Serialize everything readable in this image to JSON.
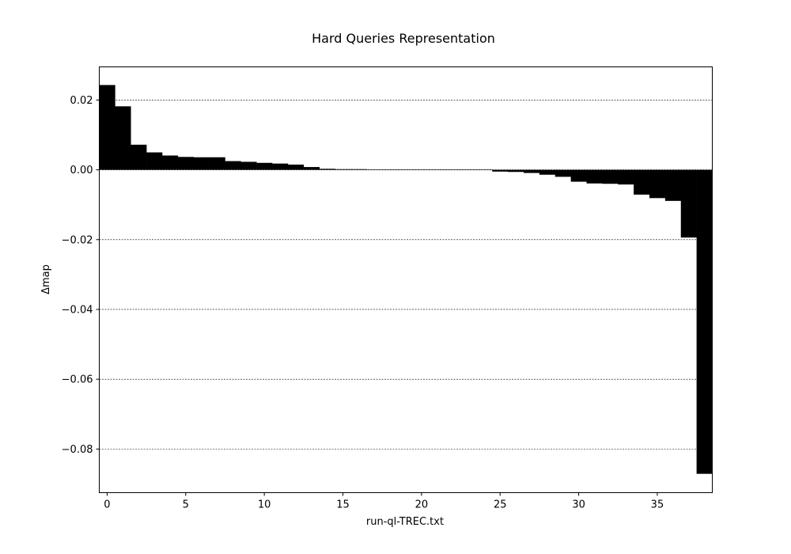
{
  "chart_data": {
    "type": "bar",
    "title": "Hard Queries Representation",
    "xlabel": "run-ql-TREC.txt",
    "ylabel": "Δmap",
    "xlim": [
      -0.5,
      38.5
    ],
    "ylim": [
      -0.0925,
      0.0295
    ],
    "xticks": [
      0,
      5,
      10,
      15,
      20,
      25,
      30,
      35
    ],
    "xtick_labels": [
      "0",
      "5",
      "10",
      "15",
      "20",
      "25",
      "30",
      "35"
    ],
    "yticks": [
      0.02,
      0.0,
      -0.02,
      -0.04,
      -0.06,
      -0.08
    ],
    "ytick_labels": [
      "0.02",
      "0.00",
      "−0.02",
      "−0.04",
      "−0.06",
      "−0.08"
    ],
    "grid": "horizontal dotted",
    "bar_color": "#000000",
    "x": [
      0,
      1,
      2,
      3,
      4,
      5,
      6,
      7,
      8,
      9,
      10,
      11,
      12,
      13,
      14,
      15,
      16,
      17,
      18,
      19,
      20,
      21,
      22,
      23,
      24,
      25,
      26,
      27,
      28,
      29,
      30,
      31,
      32,
      33,
      34,
      35,
      36,
      37,
      38
    ],
    "values": [
      0.0243,
      0.0182,
      0.0072,
      0.005,
      0.0041,
      0.0037,
      0.0036,
      0.0036,
      0.0025,
      0.0023,
      0.002,
      0.0018,
      0.0015,
      0.0008,
      0.0003,
      0.0002,
      0.0002,
      0.0001,
      0.0001,
      0.0001,
      0.0001,
      0.0001,
      0.0001,
      0.0001,
      0.0001,
      -0.0005,
      -0.0006,
      -0.0009,
      -0.0014,
      -0.002,
      -0.0034,
      -0.0039,
      -0.004,
      -0.0042,
      -0.0071,
      -0.0081,
      -0.0089,
      -0.0194,
      -0.0871
    ]
  }
}
